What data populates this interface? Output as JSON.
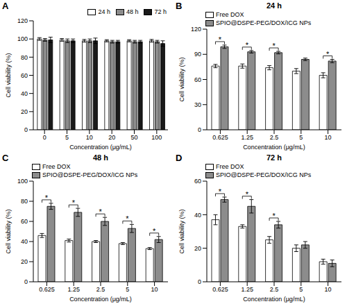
{
  "chart_data": [
    {
      "panel": "A",
      "type": "bar",
      "categories": [
        "0",
        "5",
        "10",
        "20",
        "50",
        "100"
      ],
      "series": [
        {
          "name": "24 h",
          "color": "#ffffff",
          "values": [
            100,
            99,
            98,
            98,
            98,
            98
          ],
          "errors": [
            1.5,
            1.5,
            1.5,
            1.2,
            1.2,
            1.5
          ]
        },
        {
          "name": "48 h",
          "color": "#8c8c8c",
          "values": [
            99,
            98,
            98,
            97,
            97,
            97
          ],
          "errors": [
            1.5,
            2,
            2,
            1.5,
            1.5,
            1.5
          ]
        },
        {
          "name": "72 h",
          "color": "#1a1a1a",
          "values": [
            99,
            98,
            98,
            97,
            97,
            95
          ],
          "errors": [
            3,
            2,
            3,
            1.5,
            1.5,
            3
          ]
        }
      ],
      "ylim": [
        0,
        120
      ],
      "yticks": [
        0,
        20,
        40,
        60,
        80,
        100,
        120
      ],
      "xlabel": "Concentration (μg/mL)",
      "ylabel": "Cell viability (%)",
      "legend": "top right",
      "annotations": []
    },
    {
      "panel": "B",
      "type": "bar",
      "title": "24 h",
      "categories": [
        "0.625",
        "1.25",
        "2.5",
        "5",
        "10"
      ],
      "series": [
        {
          "name": "Free DOX",
          "color": "#ffffff",
          "values": [
            76,
            76,
            74,
            70,
            65
          ],
          "errors": [
            2,
            2.5,
            2.5,
            3,
            3
          ]
        },
        {
          "name": "SPIO@DSPE-PEG/DOX/ICG NPs",
          "color": "#8c8c8c",
          "values": [
            99,
            93,
            92,
            84,
            82
          ],
          "errors": [
            2,
            1.5,
            1.5,
            1.5,
            2
          ]
        }
      ],
      "ylim": [
        0,
        120
      ],
      "yticks": [
        0,
        30,
        60,
        90,
        120
      ],
      "xlabel": "Concentration (μg/mL)",
      "ylabel": "Cell viability (%)",
      "legend": "top left",
      "annotations": [
        {
          "category": "0.625",
          "text": "*"
        },
        {
          "category": "1.25",
          "text": "*"
        },
        {
          "category": "2.5",
          "text": "*"
        },
        {
          "category": "10",
          "text": "*"
        }
      ]
    },
    {
      "panel": "C",
      "type": "bar",
      "title": "48 h",
      "categories": [
        "0.625",
        "1.25",
        "2.5",
        "5",
        "10"
      ],
      "series": [
        {
          "name": "Free DOX",
          "color": "#ffffff",
          "values": [
            46,
            41,
            40,
            38,
            33
          ],
          "errors": [
            2,
            1.5,
            1,
            1,
            1
          ]
        },
        {
          "name": "SPIO@DSPE-PEG/DOX/ICG NPs",
          "color": "#8c8c8c",
          "values": [
            75,
            69,
            60,
            53,
            42
          ],
          "errors": [
            3,
            4,
            4,
            4,
            3
          ]
        }
      ],
      "ylim": [
        0,
        100
      ],
      "yticks": [
        0,
        20,
        40,
        60,
        80,
        100
      ],
      "xlabel": "Concentration (μg/mL)",
      "ylabel": "Cell viability (%)",
      "legend": "top left",
      "annotations": [
        {
          "category": "0.625",
          "text": "*"
        },
        {
          "category": "1.25",
          "text": "*"
        },
        {
          "category": "2.5",
          "text": "*"
        },
        {
          "category": "5",
          "text": "*"
        },
        {
          "category": "10",
          "text": "*"
        }
      ]
    },
    {
      "panel": "D",
      "type": "bar",
      "title": "72 h",
      "categories": [
        "0.625",
        "1.25",
        "2.5",
        "5",
        "10"
      ],
      "series": [
        {
          "name": "Free DOX",
          "color": "#ffffff",
          "values": [
            37,
            33,
            25,
            20,
            12
          ],
          "errors": [
            3,
            1,
            2,
            2,
            1.5
          ]
        },
        {
          "name": "SPIO@DSPE-PEG/DOX/ICG NPs",
          "color": "#8c8c8c",
          "values": [
            49,
            45,
            34,
            22,
            11
          ],
          "errors": [
            1.5,
            4,
            2,
            2,
            2
          ]
        }
      ],
      "ylim": [
        0,
        60
      ],
      "yticks": [
        0,
        20,
        40,
        60
      ],
      "xlabel": "Concentration (μg/mL)",
      "ylabel": "Cell viability (%)",
      "legend": "top left",
      "annotations": [
        {
          "category": "0.625",
          "text": "*"
        },
        {
          "category": "1.25",
          "text": "*"
        },
        {
          "category": "2.5",
          "text": "*"
        }
      ]
    }
  ]
}
